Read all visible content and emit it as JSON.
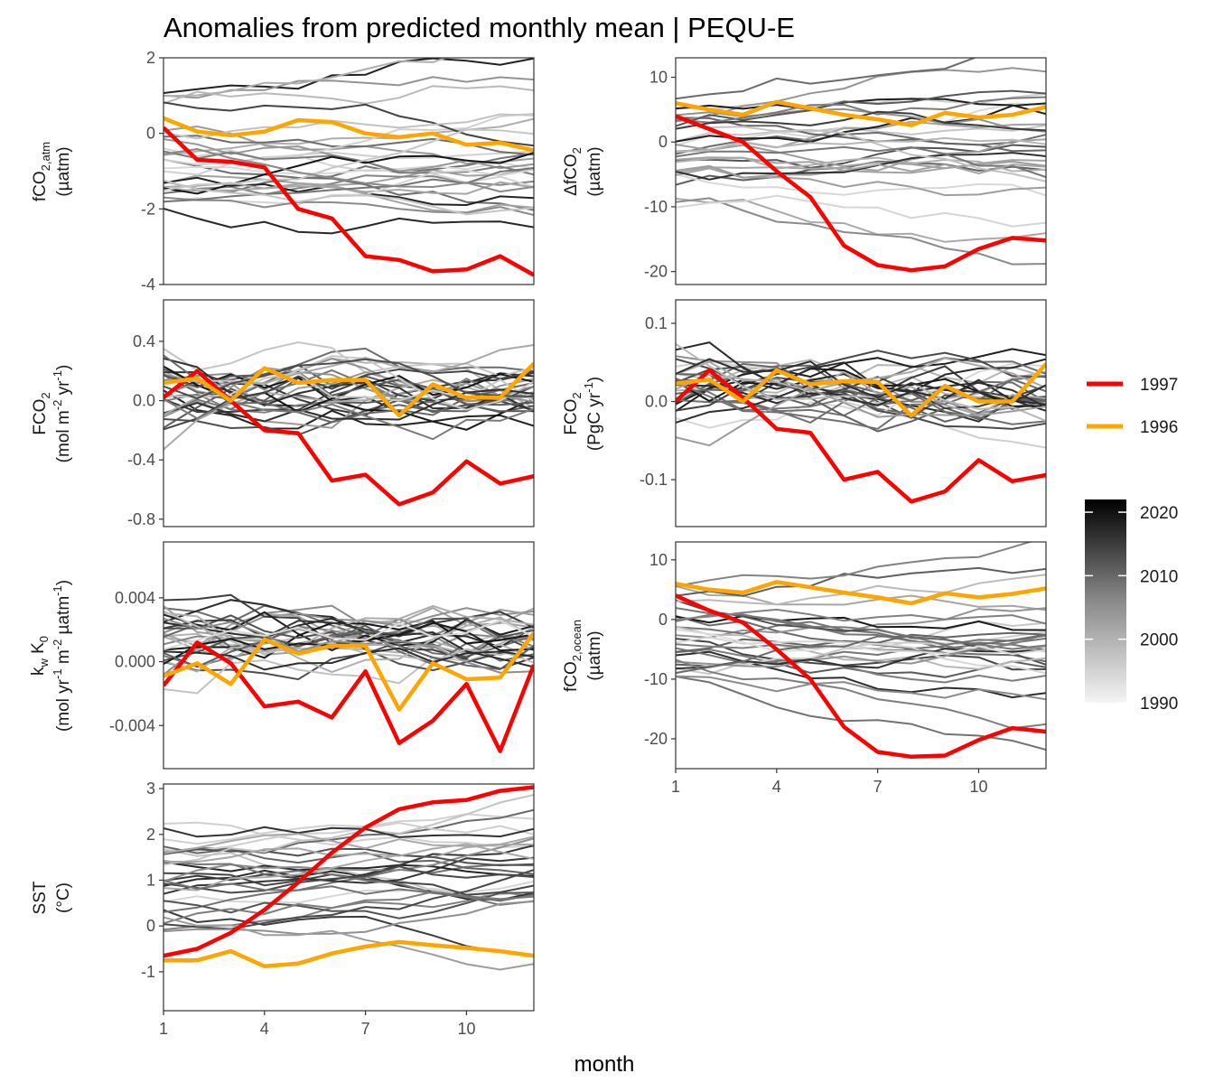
{
  "title": "Anomalies from predicted monthly mean | PEQU-E",
  "xlabel": "month",
  "x_ticks": [
    "1",
    "4",
    "7",
    "10"
  ],
  "legend": {
    "series": [
      {
        "name": "1997",
        "color": "#ff0000"
      },
      {
        "name": "1996",
        "color": "#ffa500"
      }
    ],
    "colorbar_labels": [
      "2020",
      "2010",
      "2000",
      "1990"
    ],
    "colorbar_range": [
      1990,
      2022
    ]
  },
  "panels": {
    "fco2_atm": {
      "tick_labels": [
        "2",
        "0",
        "-2",
        "-4"
      ],
      "label": [
        "fCO",
        "2,atm",
        "(µatm)"
      ]
    },
    "dfco2": {
      "tick_labels": [
        "10",
        "0",
        "-10",
        "-20"
      ],
      "label": [
        "ΔfCO",
        "2",
        "(µatm)"
      ]
    },
    "fco2_flux": {
      "tick_labels": [
        "0.4",
        "0.0",
        "-0.4",
        "-0.8"
      ],
      "label": [
        "FCO",
        "2",
        "(mol m",
        "-2",
        " yr",
        "-1",
        ")"
      ]
    },
    "fco2_pgc": {
      "tick_labels": [
        "0.1",
        "0.0",
        "-0.1"
      ],
      "label": [
        "FCO",
        "2",
        "(PgC yr",
        "-1",
        ")"
      ]
    },
    "kw_k0": {
      "tick_labels": [
        "0.004",
        "0.000",
        "-0.004"
      ],
      "label": [
        "k",
        "w",
        " K",
        "0",
        "(mol yr",
        "-1",
        " m",
        "-2",
        " µatm",
        "-1",
        ")"
      ]
    },
    "fco2_ocean": {
      "tick_labels": [
        "10",
        "0",
        "-10",
        "-20"
      ],
      "label": [
        "fCO",
        "2,ocean",
        "(µatm)"
      ]
    },
    "sst": {
      "tick_labels": [
        "3",
        "2",
        "1",
        "0",
        "-1"
      ],
      "label": [
        "SST",
        "(°C)"
      ]
    }
  },
  "chart_data": [
    {
      "type": "line",
      "panel": "fco2_atm",
      "ylim": [
        -4,
        2
      ],
      "x": [
        1,
        2,
        3,
        4,
        5,
        6,
        7,
        8,
        9,
        10,
        11,
        12
      ],
      "series": [
        {
          "name": "1997",
          "values": [
            0.15,
            -0.7,
            -0.75,
            -0.9,
            -2.0,
            -2.25,
            -3.25,
            -3.35,
            -3.65,
            -3.6,
            -3.25,
            -3.75
          ]
        },
        {
          "name": "1996",
          "values": [
            0.4,
            0.05,
            -0.05,
            0.05,
            0.35,
            0.3,
            0.0,
            -0.1,
            0.0,
            -0.3,
            -0.25,
            -0.45
          ]
        }
      ]
    },
    {
      "type": "line",
      "panel": "dfco2",
      "ylim": [
        -22,
        13
      ],
      "x": [
        1,
        2,
        3,
        4,
        5,
        6,
        7,
        8,
        9,
        10,
        11,
        12
      ],
      "series": [
        {
          "name": "1997",
          "values": [
            4,
            2,
            0,
            -4.5,
            -8.5,
            -16,
            -19,
            -19.8,
            -19.2,
            -16.5,
            -14.8,
            -15.2
          ]
        },
        {
          "name": "1996",
          "values": [
            6,
            5,
            4.2,
            6.2,
            5.2,
            4.2,
            3.5,
            2.6,
            4.5,
            3.8,
            4.2,
            5.4
          ]
        }
      ]
    },
    {
      "type": "line",
      "panel": "fco2_flux",
      "ylim": [
        -0.85,
        0.68
      ],
      "x": [
        1,
        2,
        3,
        4,
        5,
        6,
        7,
        8,
        9,
        10,
        11,
        12
      ],
      "series": [
        {
          "name": "1997",
          "values": [
            0.02,
            0.2,
            0.0,
            -0.2,
            -0.22,
            -0.54,
            -0.5,
            -0.7,
            -0.62,
            -0.41,
            -0.56,
            -0.51
          ]
        },
        {
          "name": "1996",
          "values": [
            0.12,
            0.15,
            0.0,
            0.22,
            0.12,
            0.14,
            0.14,
            -0.1,
            0.11,
            0.02,
            0.02,
            0.25
          ]
        }
      ]
    },
    {
      "type": "line",
      "panel": "fco2_pgc",
      "ylim": [
        -0.16,
        0.13
      ],
      "x": [
        1,
        2,
        3,
        4,
        5,
        6,
        7,
        8,
        9,
        10,
        11,
        12
      ],
      "series": [
        {
          "name": "1997",
          "values": [
            0.0,
            0.04,
            0.005,
            -0.035,
            -0.04,
            -0.1,
            -0.09,
            -0.128,
            -0.115,
            -0.075,
            -0.102,
            -0.094
          ]
        },
        {
          "name": "1996",
          "values": [
            0.023,
            0.028,
            0.0,
            0.04,
            0.022,
            0.026,
            0.025,
            -0.018,
            0.02,
            0.0,
            0.0,
            0.048
          ]
        }
      ]
    },
    {
      "type": "line",
      "panel": "kw_k0",
      "ylim": [
        -0.0067,
        0.0075
      ],
      "x": [
        1,
        2,
        3,
        4,
        5,
        6,
        7,
        8,
        9,
        10,
        11,
        12
      ],
      "series": [
        {
          "name": "1997",
          "values": [
            -0.0015,
            0.0012,
            -0.0001,
            -0.0028,
            -0.0025,
            -0.0035,
            -0.0006,
            -0.0051,
            -0.0037,
            -0.0014,
            -0.0056,
            -0.0002
          ]
        },
        {
          "name": "1996",
          "values": [
            -0.0009,
            -0.0001,
            -0.0014,
            0.0014,
            0.0005,
            0.001,
            0.001,
            -0.003,
            -0.0001,
            -0.0011,
            -0.001,
            0.0018
          ]
        }
      ]
    },
    {
      "type": "line",
      "panel": "fco2_ocean",
      "ylim": [
        -25,
        13
      ],
      "x": [
        1,
        2,
        3,
        4,
        5,
        6,
        7,
        8,
        9,
        10,
        11,
        12
      ],
      "series": [
        {
          "name": "1997",
          "values": [
            4,
            1.5,
            -0.5,
            -5,
            -10,
            -18,
            -22.2,
            -23,
            -22.8,
            -20.2,
            -18.2,
            -18.8
          ]
        },
        {
          "name": "1996",
          "values": [
            6,
            5,
            4.5,
            6.3,
            5.4,
            4.5,
            3.7,
            2.7,
            4.4,
            3.7,
            4.3,
            5.2
          ]
        }
      ]
    },
    {
      "type": "line",
      "panel": "sst",
      "ylim": [
        -1.85,
        3.1
      ],
      "x": [
        1,
        2,
        3,
        4,
        5,
        6,
        7,
        8,
        9,
        10,
        11,
        12
      ],
      "series": [
        {
          "name": "1997",
          "values": [
            -0.65,
            -0.5,
            -0.15,
            0.35,
            0.95,
            1.6,
            2.15,
            2.55,
            2.7,
            2.75,
            2.95,
            3.03
          ]
        },
        {
          "name": "1996",
          "values": [
            -0.75,
            -0.75,
            -0.55,
            -0.88,
            -0.82,
            -0.6,
            -0.45,
            -0.35,
            -0.42,
            -0.48,
            -0.55,
            -0.65
          ]
        }
      ]
    }
  ]
}
